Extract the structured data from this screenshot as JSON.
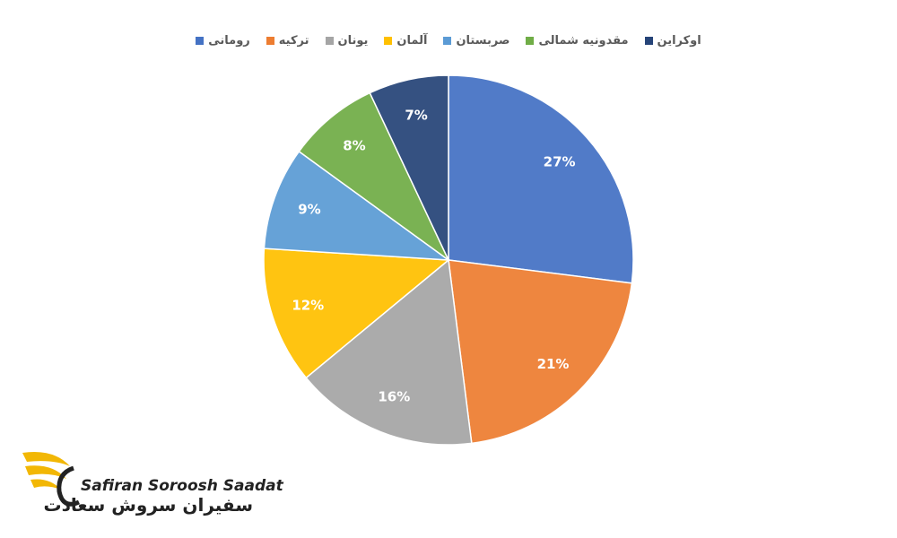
{
  "chart_data": {
    "type": "pie",
    "categories": [
      "رومانی",
      "ترکیه",
      "یونان",
      "آلمان",
      "صربستان",
      "مقدونیه شمالی",
      "اوکراین"
    ],
    "values": [
      27,
      21,
      16,
      12,
      9,
      8,
      7
    ],
    "value_labels": [
      "27%",
      "21%",
      "16%",
      "12%",
      "9%",
      "8%",
      "7%"
    ],
    "colors": [
      "#4472c4",
      "#ed7d31",
      "#a5a5a5",
      "#ffc000",
      "#5b9bd5",
      "#70ad47",
      "#264478"
    ],
    "legend": "top"
  },
  "logo": {
    "latin": "Safiran Soroosh Saadat",
    "persian": "سفیران سروش سعادت"
  }
}
